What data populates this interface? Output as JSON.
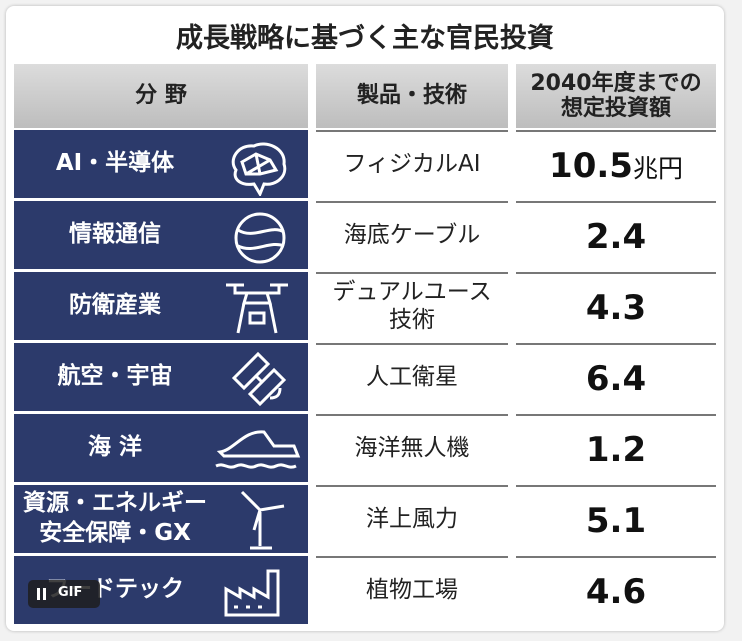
{
  "title": "成長戦略に基づく主な官民投資",
  "header": {
    "field": "分 野",
    "product": "製品・技術",
    "amount": [
      "2040年度までの",
      "想定投資額"
    ]
  },
  "rows": [
    {
      "field": [
        "AI・半導体"
      ],
      "product": [
        "フィジカルAI"
      ],
      "amount": 10.5,
      "unit": "兆円"
    },
    {
      "field": [
        "情報通信"
      ],
      "product": [
        "海底ケーブル"
      ],
      "amount": 2.4
    },
    {
      "field": [
        "防衛産業"
      ],
      "product": [
        "デュアルユース",
        "技術"
      ],
      "amount": 4.3
    },
    {
      "field": [
        "航空・宇宙"
      ],
      "product": [
        "人工衛星"
      ],
      "amount": 6.4
    },
    {
      "field": [
        "海 洋"
      ],
      "product": [
        "海洋無人機"
      ],
      "amount": 1.2
    },
    {
      "field": [
        "資源・エネルギー",
        "安全保障・GX"
      ],
      "product": [
        "洋上風力"
      ],
      "amount": 5.1
    },
    {
      "field": [
        "フードテック"
      ],
      "product": [
        "植物工場"
      ],
      "amount": 4.6
    }
  ],
  "badge": "GIF"
}
